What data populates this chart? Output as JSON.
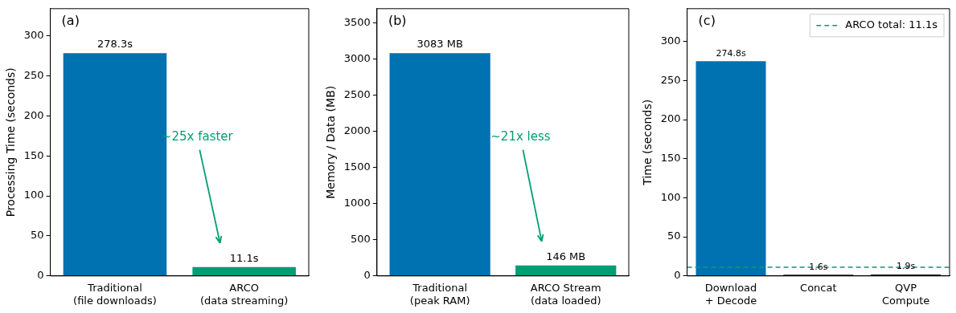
{
  "chart_data": [
    {
      "type": "bar",
      "ylabel": "Processing Time (seconds)",
      "categories": [
        "Traditional\n(file downloads)",
        "ARCO\n(data streaming)"
      ],
      "values": [
        278.3,
        11.1
      ],
      "colors": [
        "#0072b2",
        "#009e73"
      ],
      "value_labels": [
        "278.3s",
        "11.1s"
      ],
      "ylim": [
        0,
        334
      ],
      "yticks": [
        0,
        50,
        100,
        150,
        200,
        250,
        300
      ],
      "grid": false,
      "legend": false,
      "annotations": [
        "(a)",
        "~25x faster"
      ]
    },
    {
      "type": "bar",
      "ylabel": "Memory / Data (MB)",
      "categories": [
        "Traditional\n(peak RAM)",
        "ARCO Stream\n(data loaded)"
      ],
      "values": [
        3083,
        146
      ],
      "colors": [
        "#0072b2",
        "#009e73"
      ],
      "value_labels": [
        "3083 MB",
        "146 MB"
      ],
      "ylim": [
        0,
        3700
      ],
      "yticks": [
        0,
        500,
        1000,
        1500,
        2000,
        2500,
        3000,
        3500
      ],
      "grid": false,
      "legend": false,
      "annotations": [
        "(b)",
        "~21x less"
      ]
    },
    {
      "type": "bar",
      "ylabel": "Time (seconds)",
      "categories": [
        "Download\n+ Decode",
        "Concat",
        "QVP\nCompute"
      ],
      "values": [
        274.8,
        1.6,
        1.9
      ],
      "colors": [
        "#0072b2",
        "#222222",
        "#222222"
      ],
      "value_labels": [
        "274.8s",
        "1.6s",
        "1.9s"
      ],
      "ylim": [
        0,
        342
      ],
      "yticks": [
        0,
        50,
        100,
        150,
        200,
        250,
        300
      ],
      "grid": false,
      "legend": "top right",
      "ref_lines": [
        {
          "axis": "y",
          "value": 11.1,
          "label": "ARCO total: 11.1s",
          "color": "#009e73",
          "line_style": "dashed"
        }
      ],
      "annotations": [
        "(c)"
      ]
    }
  ]
}
